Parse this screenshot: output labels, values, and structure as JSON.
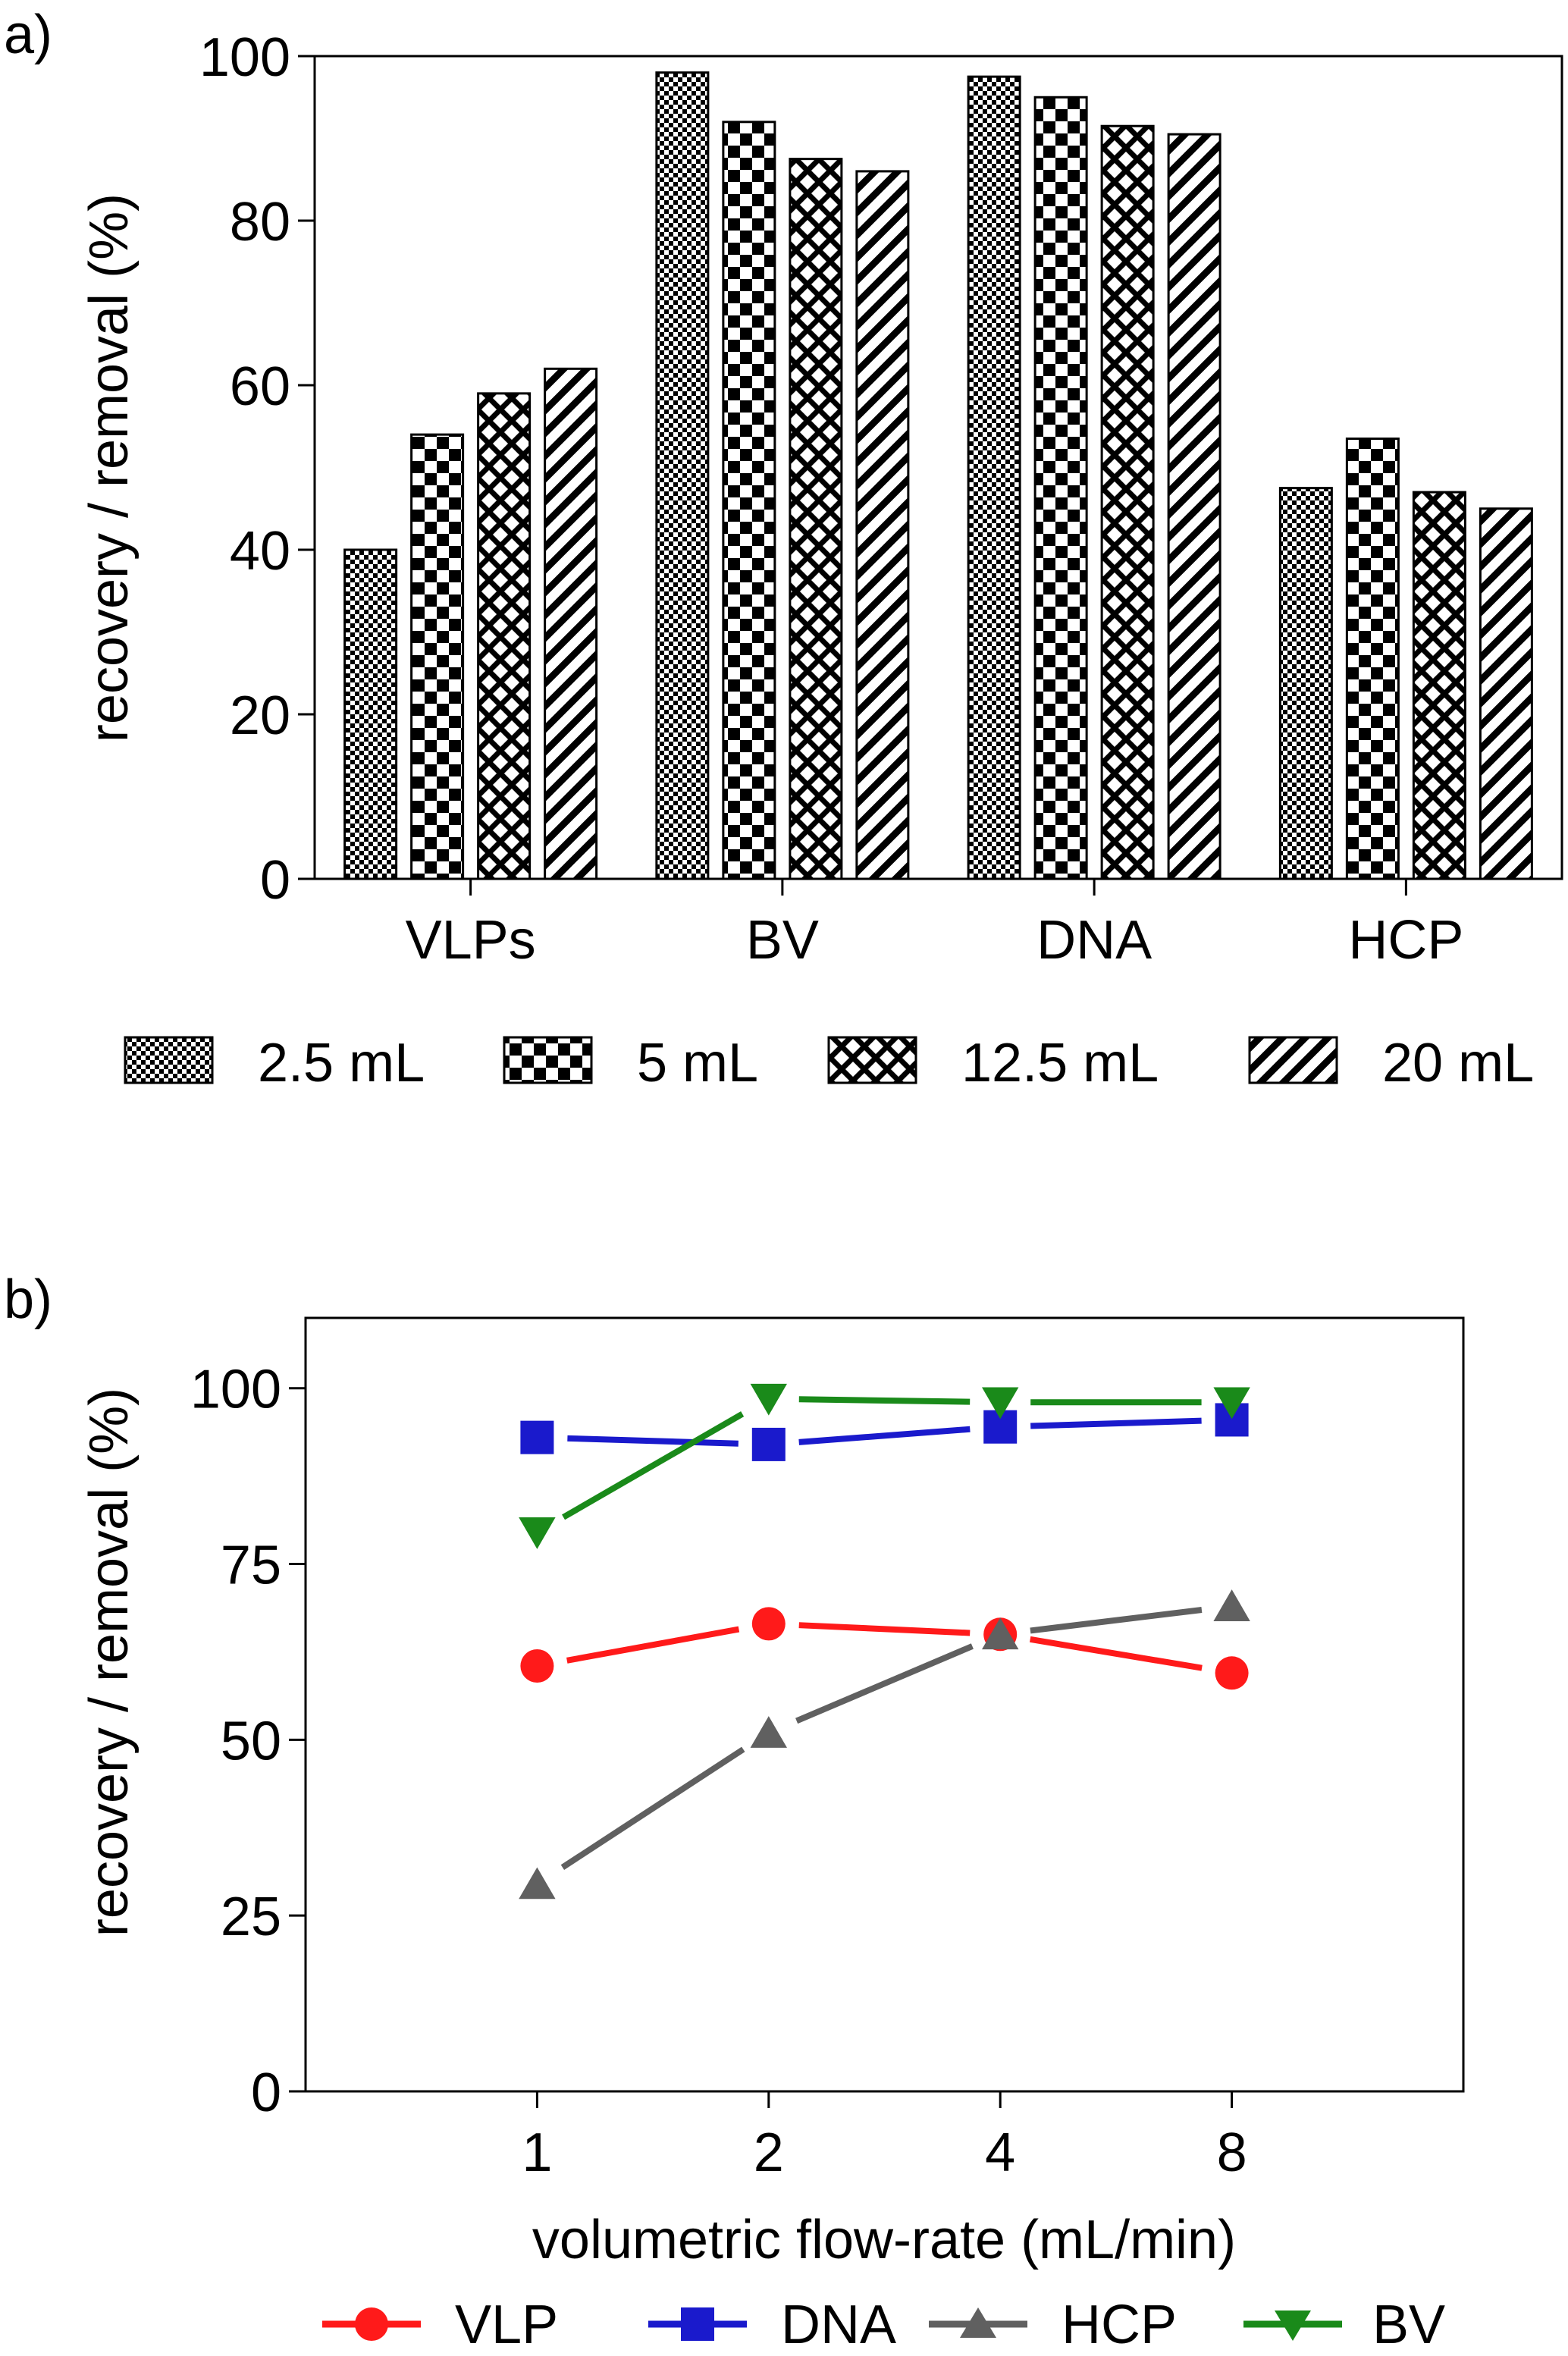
{
  "chart_data": [
    {
      "panel": "a)",
      "type": "bar",
      "title": "",
      "xlabel": "",
      "ylabel": "recovery / removal (%)",
      "ylim": [
        0,
        100
      ],
      "yticks": [
        0,
        20,
        40,
        60,
        80,
        100
      ],
      "categories": [
        "VLPs",
        "BV",
        "DNA",
        "HCP"
      ],
      "series": [
        {
          "name": "2.5 mL",
          "pattern": "fine-checker",
          "values": [
            40,
            98,
            97.5,
            47.5
          ]
        },
        {
          "name": "5 mL",
          "pattern": "coarse-checker",
          "values": [
            54,
            92,
            95,
            53.5
          ]
        },
        {
          "name": "12.5 mL",
          "pattern": "crosshatch",
          "values": [
            59,
            87.5,
            91.5,
            47
          ]
        },
        {
          "name": "20 mL",
          "pattern": "diagonal",
          "values": [
            62,
            86,
            90.5,
            45
          ]
        }
      ],
      "legend": "bottom",
      "grid": false
    },
    {
      "panel": "b)",
      "type": "line",
      "title": "",
      "xlabel": "volumetric flow-rate (mL/min)",
      "ylabel": "recovery / removal (%)",
      "x": [
        1,
        2,
        4,
        8
      ],
      "xticks": [
        1,
        2,
        4,
        8
      ],
      "xscale": "log2",
      "xlim": [
        0.5,
        16
      ],
      "ylim": [
        0,
        110
      ],
      "yticks": [
        0,
        25,
        50,
        75,
        100
      ],
      "series": [
        {
          "name": "VLP",
          "color": "#ff1a1a",
          "marker": "circle",
          "values": [
            60.5,
            66.5,
            65,
            59.5
          ]
        },
        {
          "name": "DNA",
          "color": "#1a1acc",
          "marker": "square",
          "values": [
            93,
            92,
            94.5,
            95.5
          ]
        },
        {
          "name": "HCP",
          "color": "#606060",
          "marker": "triangle-up",
          "values": [
            29.5,
            51,
            65,
            69
          ]
        },
        {
          "name": "BV",
          "color": "#1a8a1a",
          "marker": "triangle-down",
          "values": [
            79.5,
            98.5,
            98,
            98
          ]
        }
      ],
      "legend": "bottom",
      "grid": false
    }
  ]
}
